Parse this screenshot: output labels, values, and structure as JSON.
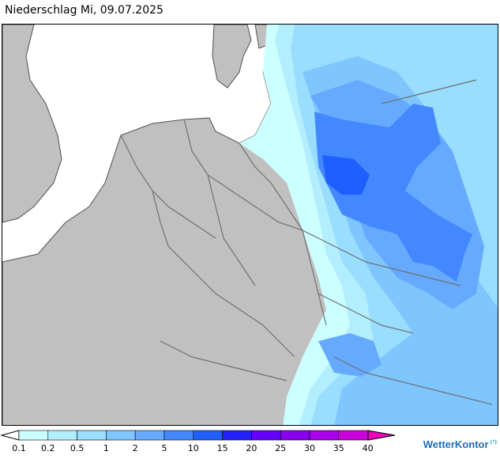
{
  "title": "Niederschlag Mi, 09.07.2025",
  "brand": "WetterKontor",
  "brand_icon": "raindrops-icon",
  "legend": {
    "unit": "",
    "ticks": [
      "0.1",
      "0.2",
      "0.5",
      "1",
      "2",
      "5",
      "10",
      "15",
      "20",
      "25",
      "30",
      "35",
      "40"
    ],
    "colors": [
      "#ccffff",
      "#b3eeff",
      "#99ddff",
      "#7fc6ff",
      "#66aaff",
      "#4488ff",
      "#1f5fff",
      "#2222ff",
      "#6600ff",
      "#8800ee",
      "#aa00ee",
      "#cc00dd",
      "#ff00cc"
    ],
    "underflow_color": "#ffffff",
    "overflow_color": "#ee00bb"
  },
  "colors": {
    "land": "#c0c0c0",
    "sea": "#ffffff",
    "border": "#707070",
    "coast": "#505050"
  }
}
